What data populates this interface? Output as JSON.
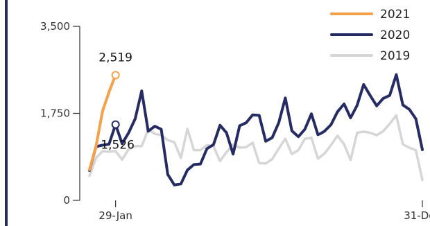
{
  "chart_data": {
    "type": "line",
    "ylim": [
      0,
      3500
    ],
    "yticks": [
      {
        "value": 0,
        "label": "0"
      },
      {
        "value": 1750,
        "label": "1,750"
      },
      {
        "value": 3500,
        "label": "3,500"
      }
    ],
    "xticks": [
      {
        "week": 5,
        "label": "29-Jan"
      },
      {
        "week": 52,
        "label": "31-Dec"
      }
    ],
    "xlim": [
      1,
      52
    ],
    "series": [
      {
        "name": "2021",
        "color": "#f5a04a",
        "x": [
          1,
          2,
          3,
          4,
          5
        ],
        "values": [
          615,
          1080,
          1790,
          2180,
          2519
        ]
      },
      {
        "name": "2020",
        "color": "#252b63",
        "x": [
          1,
          2,
          3,
          4,
          5,
          6,
          7,
          8,
          9,
          10,
          11,
          12,
          13,
          14,
          15,
          16,
          17,
          18,
          19,
          20,
          21,
          22,
          23,
          24,
          25,
          26,
          27,
          28,
          29,
          30,
          31,
          32,
          33,
          34,
          35,
          36,
          36.5,
          37,
          38,
          39,
          40,
          41,
          42,
          43,
          44,
          45,
          46,
          47,
          48,
          49,
          50,
          51,
          52
        ],
        "values": [
          600,
          1080,
          1110,
          1130,
          1526,
          1140,
          1360,
          1640,
          2200,
          1390,
          1490,
          1430,
          520,
          310,
          330,
          610,
          720,
          730,
          1040,
          1120,
          1510,
          1360,
          930,
          1500,
          1560,
          1720,
          1710,
          1190,
          1260,
          1560,
          2060,
          1400,
          1280,
          1430,
          1740,
          1320,
          1350,
          1390,
          1520,
          1780,
          1940,
          1660,
          1910,
          2330,
          2110,
          1900,
          2050,
          2110,
          2530,
          1920,
          1830,
          1640,
          1020
        ]
      },
      {
        "name": "2019",
        "color": "#d6d6d6",
        "x": [
          1,
          2,
          3,
          4,
          5,
          6,
          7,
          8,
          9,
          10,
          11,
          12,
          13,
          14,
          15,
          16,
          17,
          18,
          19,
          20,
          21,
          22,
          23,
          24,
          25,
          26,
          27,
          28,
          29,
          30,
          31,
          32,
          33,
          34,
          35,
          36,
          37,
          38,
          39,
          40,
          41,
          42,
          43,
          44,
          45,
          46,
          47,
          48,
          49,
          50,
          51,
          52
        ],
        "values": [
          490,
          850,
          990,
          980,
          990,
          820,
          1030,
          1090,
          1090,
          1420,
          1340,
          1310,
          1210,
          1170,
          850,
          1440,
          1010,
          1010,
          1110,
          1090,
          790,
          970,
          1120,
          1060,
          1070,
          1160,
          750,
          740,
          830,
          1040,
          1240,
          930,
          1010,
          1240,
          1260,
          840,
          940,
          1110,
          1300,
          1130,
          810,
          1360,
          1380,
          1360,
          1310,
          1390,
          1540,
          1710,
          1130,
          1060,
          1010,
          410
        ]
      }
    ],
    "annotations": [
      {
        "series": "2021",
        "x": 5,
        "value": 2519,
        "label": "2,519"
      },
      {
        "series": "2020",
        "x": 5,
        "value": 1526,
        "label": "1,526"
      }
    ],
    "legend_position": "top-right",
    "grid": false
  }
}
